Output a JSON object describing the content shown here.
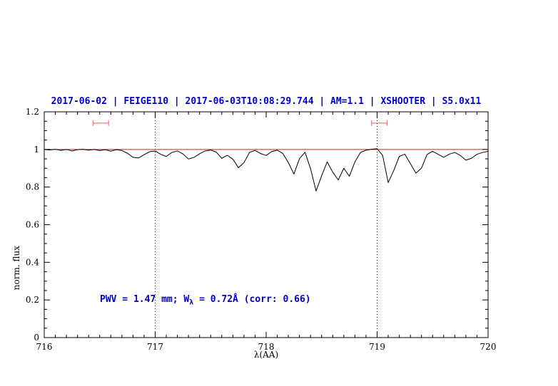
{
  "chart_data": {
    "type": "line",
    "title": "2017-06-02 | FEIGE110 | 2017-06-03T10:08:29.744 | AM=1.1 | XSHOOTER | S5.0x11",
    "xlabel": "λ(AA)",
    "ylabel": "norm. flux",
    "xlim": [
      716,
      720
    ],
    "ylim": [
      0,
      1.2
    ],
    "xticks": [
      716,
      717,
      718,
      719,
      720
    ],
    "xtick_labels": [
      "716",
      "717",
      "718",
      "719",
      "720"
    ],
    "yticks": [
      0,
      0.2,
      0.4,
      0.6,
      0.8,
      1.0,
      1.2
    ],
    "ytick_labels": [
      "0",
      "0.2",
      "0.4",
      "0.6",
      "0.8",
      "1",
      "1.2"
    ],
    "minor_xtick_step": 0.1,
    "minor_ytick_step": 0.05,
    "grid": false,
    "legend": "none",
    "dotted_vlines": [
      717,
      719
    ],
    "continuum_line": {
      "y": 1.0,
      "color": "#cc2222"
    },
    "interval_markers": [
      {
        "x_start": 716.44,
        "x_end": 716.58,
        "y": 1.14,
        "cap_half_height": 0.015,
        "color": "#e08080"
      },
      {
        "x_start": 718.95,
        "x_end": 719.09,
        "y": 1.14,
        "cap_half_height": 0.015,
        "color": "#e08080"
      }
    ],
    "series": [
      {
        "name": "normalized telluric spectrum",
        "color": "#000000",
        "x_start": 716.0,
        "x_step": 0.05,
        "y": [
          1.0,
          0.997,
          1.001,
          0.995,
          1.0,
          0.992,
          0.999,
          1.001,
          0.996,
          1.0,
          0.994,
          0.999,
          0.991,
          0.999,
          0.994,
          0.98,
          0.958,
          0.955,
          0.972,
          0.988,
          0.992,
          0.974,
          0.963,
          0.984,
          0.992,
          0.976,
          0.949,
          0.958,
          0.977,
          0.992,
          0.997,
          0.986,
          0.953,
          0.969,
          0.948,
          0.903,
          0.93,
          0.984,
          0.995,
          0.978,
          0.968,
          0.989,
          0.996,
          0.979,
          0.93,
          0.869,
          0.951,
          0.985,
          0.898,
          0.779,
          0.86,
          0.934,
          0.879,
          0.838,
          0.9,
          0.857,
          0.934,
          0.984,
          0.996,
          1.001,
          1.004,
          0.968,
          0.824,
          0.888,
          0.963,
          0.975,
          0.924,
          0.874,
          0.901,
          0.973,
          0.99,
          0.974,
          0.958,
          0.975,
          0.984,
          0.968,
          0.943,
          0.953,
          0.974,
          0.984,
          0.99
        ]
      }
    ]
  },
  "annotation": {
    "prefix": "PWV = 1.47 mm; W",
    "sub": "λ",
    "suffix": " = 0.72Å (corr: 0.66)"
  },
  "colors": {
    "title_text": "#0000cc",
    "annotation_text": "#0000cc",
    "spectrum": "#000000",
    "continuum": "#cc2222",
    "marker": "#e08080",
    "axis": "#000000"
  }
}
